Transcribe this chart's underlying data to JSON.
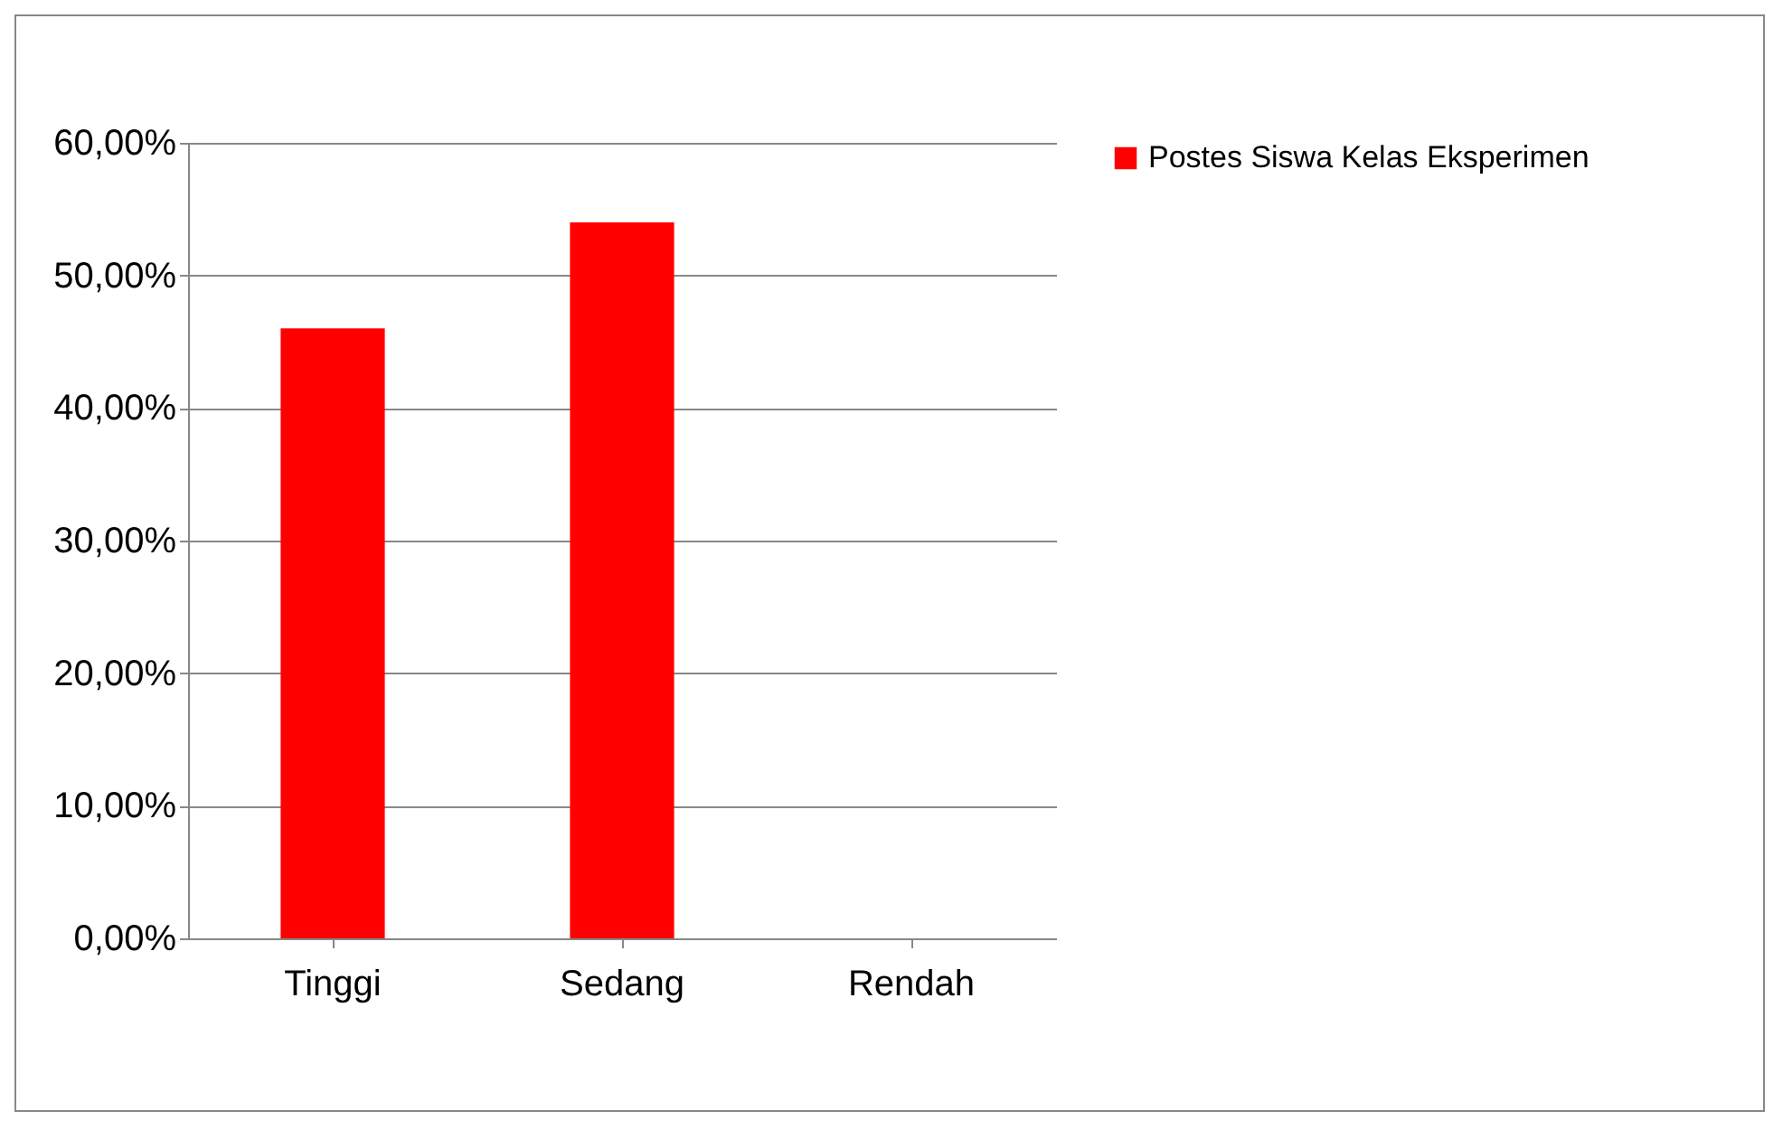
{
  "chart_data": {
    "type": "bar",
    "categories": [
      "Tinggi",
      "Sedang",
      "Rendah"
    ],
    "series": [
      {
        "name": "Postes Siswa Kelas Eksperimen",
        "color": "#ff0000",
        "values": [
          46,
          54,
          0
        ]
      }
    ],
    "ylim": [
      0,
      60
    ],
    "yticks": [
      {
        "value": 0,
        "label": "0,00%"
      },
      {
        "value": 10,
        "label": "10,00%"
      },
      {
        "value": 20,
        "label": "20,00%"
      },
      {
        "value": 30,
        "label": "30,00%"
      },
      {
        "value": 40,
        "label": "40,00%"
      },
      {
        "value": 50,
        "label": "50,00%"
      },
      {
        "value": 60,
        "label": "60,00%"
      }
    ],
    "grid": "y",
    "legend": "right"
  }
}
